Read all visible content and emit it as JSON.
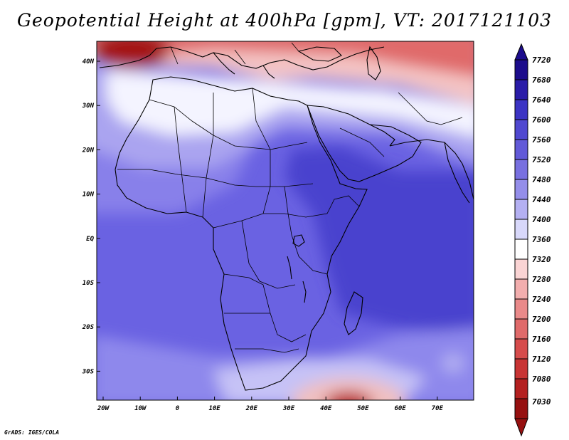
{
  "title": "Geopotential Height at 400hPa [gpm], VT: 2017121103",
  "credit": "GrADS: IGES/COLA",
  "map": {
    "lon_labels": [
      "20W",
      "10W",
      "0",
      "10E",
      "20E",
      "30E",
      "40E",
      "50E",
      "60E",
      "70E"
    ],
    "lat_labels": [
      "40N",
      "30N",
      "20N",
      "10N",
      "EQ",
      "10S",
      "20S",
      "30S"
    ],
    "colors": {
      "deep_red": "#a81818",
      "red": "#d84a4a",
      "pink": "#f2b8b8",
      "white": "#ffffff",
      "lavender": "#c8c4f4",
      "purple": "#7a72e6",
      "dark_blue": "#4038c8",
      "coast": "#000000"
    }
  },
  "colorbar": {
    "levels": [
      "7720",
      "7680",
      "7640",
      "7600",
      "7560",
      "7520",
      "7480",
      "7440",
      "7400",
      "7360",
      "7320",
      "7280",
      "7240",
      "7200",
      "7160",
      "7120",
      "7080",
      "7030"
    ],
    "colors": [
      "#1c0c8c",
      "#2a1ca8",
      "#3c34c4",
      "#5048d0",
      "#625ad8",
      "#7870e0",
      "#948eea",
      "#b4b0f2",
      "#d8d8fa",
      "#ffffff",
      "#fad4d4",
      "#f2aeae",
      "#ea8a8a",
      "#e06a6a",
      "#d64c4c",
      "#c83434",
      "#b42020",
      "#961010"
    ],
    "top_arrow_color": "#1c0c8c",
    "bottom_arrow_color": "#961010"
  }
}
